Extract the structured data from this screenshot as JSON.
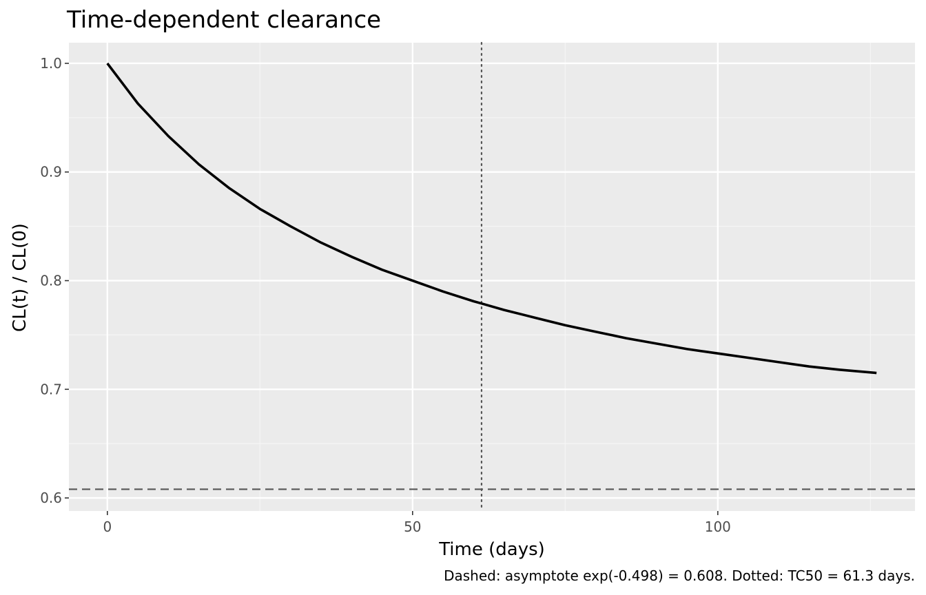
{
  "chart_data": {
    "type": "line",
    "title": "Time-dependent clearance",
    "xlabel": "Time (days)",
    "ylabel": "CL(t) / CL(0)",
    "caption": "Dashed: asymptote exp(-0.498) = 0.608. Dotted: TC50 = 61.3 days.",
    "xlim": [
      -6.3,
      132.3
    ],
    "ylim": [
      0.588,
      1.019
    ],
    "x_ticks": [
      0,
      50,
      100
    ],
    "x_tick_labels": [
      "0",
      "50",
      "100"
    ],
    "y_ticks": [
      0.6,
      0.7,
      0.8,
      0.9,
      1.0
    ],
    "y_tick_labels": [
      "0.6",
      "0.7",
      "0.8",
      "0.9",
      "1.0"
    ],
    "grid": true,
    "series": [
      {
        "x": [
          0,
          5,
          10,
          15,
          20,
          25,
          30,
          35,
          40,
          45,
          50,
          55,
          60,
          61.3,
          65,
          70,
          75,
          80,
          85,
          90,
          95,
          100,
          105,
          110,
          115,
          120,
          126
        ],
        "y": [
          1.0,
          0.963,
          0.933,
          0.907,
          0.885,
          0.866,
          0.85,
          0.835,
          0.822,
          0.81,
          0.8,
          0.79,
          0.781,
          0.779,
          0.773,
          0.766,
          0.759,
          0.753,
          0.747,
          0.742,
          0.737,
          0.733,
          0.729,
          0.725,
          0.721,
          0.718,
          0.715
        ],
        "color": "#000000"
      }
    ],
    "reference_lines": [
      {
        "kind": "horizontal",
        "value": 0.608,
        "style": "dashed",
        "color": "#555555"
      },
      {
        "kind": "vertical",
        "value": 61.3,
        "style": "dotted",
        "color": "#555555"
      }
    ],
    "colors": {
      "panel": "#ebebeb",
      "grid_major": "#ffffff",
      "grid_minor": "#f5f5f5",
      "tick_text": "#4d4d4d"
    }
  }
}
